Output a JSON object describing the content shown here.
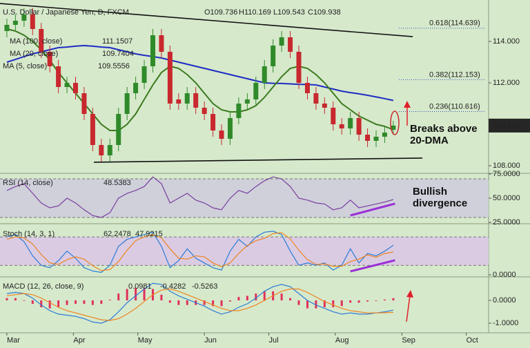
{
  "chart_data": [
    {
      "type": "candlestick",
      "title": "U.S. Dollar / Japanese Yen, D, FXCM",
      "ohlc_labels": [
        "O109.736",
        "H110.169",
        "L109.543",
        "C109.938"
      ],
      "categories": [
        null,
        null,
        null,
        null,
        null,
        null,
        null,
        null,
        null,
        null,
        null,
        null,
        null,
        null,
        null,
        null,
        null,
        null,
        null,
        null,
        null,
        null,
        null,
        null,
        null,
        null,
        null,
        null,
        null,
        null,
        null,
        null,
        null,
        null,
        null,
        null,
        null,
        null,
        null,
        null,
        null,
        null,
        null,
        null,
        null,
        null
      ],
      "candles": {
        "open": [
          114.5,
          114.8,
          115.0,
          115.3,
          114.6,
          113.5,
          112.8,
          111.8,
          112.0,
          111.5,
          110.5,
          109.0,
          108.5,
          109.0,
          110.5,
          111.5,
          112.0,
          112.8,
          114.3,
          113.5,
          111.2,
          111.0,
          111.5,
          110.8,
          110.5,
          109.7,
          109.3,
          110.3,
          111.0,
          111.2,
          112.0,
          112.8,
          113.8,
          114.2,
          113.5,
          112.0,
          111.5,
          111.0,
          110.8,
          110.0,
          109.8,
          110.3,
          109.5,
          109.2,
          109.4,
          109.736
        ],
        "high": [
          115.1,
          115.3,
          115.6,
          115.6,
          114.9,
          113.8,
          113.1,
          112.3,
          112.3,
          111.8,
          110.8,
          109.3,
          109.3,
          110.8,
          111.8,
          112.3,
          113.1,
          114.6,
          114.6,
          113.8,
          111.5,
          111.8,
          111.8,
          111.1,
          110.8,
          110.0,
          110.6,
          111.3,
          111.5,
          112.3,
          113.1,
          114.1,
          114.5,
          114.5,
          113.8,
          112.3,
          111.8,
          111.3,
          111.1,
          110.3,
          110.6,
          110.6,
          109.8,
          109.7,
          109.9,
          110.169
        ],
        "low": [
          114.2,
          114.5,
          114.7,
          114.3,
          113.2,
          112.5,
          111.5,
          111.5,
          111.2,
          110.2,
          108.7,
          108.2,
          108.2,
          108.7,
          110.2,
          111.2,
          111.7,
          112.5,
          113.2,
          110.7,
          110.7,
          110.7,
          110.5,
          110.2,
          109.4,
          109.0,
          109.0,
          110.0,
          110.7,
          110.9,
          111.7,
          112.5,
          113.5,
          113.2,
          111.7,
          111.2,
          110.7,
          110.5,
          109.7,
          109.5,
          109.5,
          109.2,
          108.9,
          108.9,
          109.1,
          109.543
        ],
        "close": [
          114.8,
          115.0,
          115.3,
          114.6,
          113.5,
          112.8,
          111.8,
          112.0,
          111.5,
          110.5,
          109.0,
          108.5,
          109.0,
          110.5,
          111.5,
          112.0,
          112.8,
          114.3,
          113.5,
          111.0,
          111.0,
          111.5,
          110.8,
          110.5,
          109.7,
          109.3,
          110.3,
          111.0,
          111.2,
          112.0,
          112.8,
          113.8,
          114.2,
          113.5,
          112.0,
          111.5,
          111.0,
          110.8,
          110.0,
          109.8,
          110.3,
          109.5,
          109.2,
          109.4,
          109.6,
          109.938
        ],
        "up_color": "#2f8a2a",
        "down_color": "#c8282e"
      },
      "series": [
        {
          "name": "MA (100, close)",
          "color": "#1d2bc4",
          "values": [
            113.0,
            113.13,
            113.27,
            113.4,
            113.5,
            113.6,
            113.7,
            113.73,
            113.77,
            113.8,
            113.77,
            113.73,
            113.7,
            113.6,
            113.5,
            113.4,
            113.33,
            113.27,
            113.2,
            113.1,
            113.0,
            112.9,
            112.8,
            112.7,
            112.6,
            112.5,
            112.4,
            112.3,
            112.2,
            112.1,
            112.0,
            111.98,
            111.97,
            111.95,
            111.93,
            111.92,
            111.9,
            111.8,
            111.7,
            111.6,
            111.53,
            111.47,
            111.4,
            111.32,
            111.24,
            111.1507
          ]
        },
        {
          "name": "MA (20, close)",
          "color": "#3b7a1e",
          "values": [
            114.6,
            114.5,
            114.3,
            114.0,
            113.6,
            113.1,
            112.5,
            112.0,
            111.5,
            111.0,
            110.5,
            110.0,
            109.7,
            109.7,
            110.0,
            110.5,
            111.2,
            111.9,
            112.5,
            112.8,
            112.7,
            112.4,
            112.0,
            111.5,
            111.0,
            110.7,
            110.6,
            110.6,
            110.7,
            110.9,
            111.3,
            111.8,
            112.3,
            112.7,
            112.8,
            112.7,
            112.4,
            112.0,
            111.5,
            111.0,
            110.7,
            110.4,
            110.2,
            110.0,
            109.9,
            109.7404
          ]
        }
      ],
      "legend_extra": [
        {
          "name": "MA (5, close)",
          "value": 109.5556
        }
      ],
      "trendlines": [
        {
          "x": [
            -0.8,
            47.27
          ],
          "y": [
            115.83,
            114.23
          ]
        },
        {
          "x": [
            10.13,
            48.39
          ],
          "y": [
            108.17,
            108.37
          ]
        }
      ],
      "fib_levels": [
        {
          "value": 114.639,
          "label": "0.618(114.639)"
        },
        {
          "value": 112.153,
          "label": "0.382(112.153)"
        },
        {
          "value": 110.616,
          "label": "0.236(110.616)"
        }
      ],
      "annotation": [
        "Breaks above",
        "20-DMA"
      ],
      "xlim": [
        -0.8,
        56.1
      ],
      "xticks": [
        {
          "value": 0,
          "label": "Mar"
        },
        {
          "value": 7.75,
          "label": "Apr"
        },
        {
          "value": 15.25,
          "label": "May"
        },
        {
          "value": 23,
          "label": "Jun"
        },
        {
          "value": 30.5,
          "label": "Jul"
        },
        {
          "value": 38.25,
          "label": "Aug"
        },
        {
          "value": 46,
          "label": "Sep"
        },
        {
          "value": 53.5,
          "label": "Oct"
        }
      ],
      "ylim": [
        107.6,
        116.0
      ],
      "yticks": [
        {
          "value": 108,
          "label": "108.000"
        },
        {
          "value": 112,
          "label": "112.000"
        },
        {
          "value": 114,
          "label": "114.000"
        }
      ]
    },
    {
      "type": "line",
      "title": "RSI (14, close)",
      "series": [
        {
          "color": "#7a3da0",
          "values": [
            58,
            62,
            65,
            55,
            45,
            40,
            42,
            50,
            45,
            38,
            32,
            30,
            35,
            50,
            55,
            58,
            62,
            72,
            65,
            45,
            50,
            55,
            48,
            45,
            40,
            38,
            50,
            58,
            55,
            62,
            68,
            72,
            70,
            62,
            50,
            48,
            45,
            44,
            38,
            40,
            48,
            40,
            42,
            44,
            46,
            48.5383
          ]
        }
      ],
      "bands": [
        70,
        30
      ],
      "band_color": "#cfd0da",
      "annotation": [
        "Bullish",
        "divergence"
      ],
      "divergence_line": {
        "x": [
          40,
          45.2
        ],
        "y": [
          32.1,
          44.3
        ]
      },
      "ylim": [
        25,
        75
      ],
      "yticks": [
        {
          "value": 75,
          "label": "75.0000"
        },
        {
          "value": 50,
          "label": "50.0000"
        },
        {
          "value": 25,
          "label": "25.0000"
        }
      ]
    },
    {
      "type": "line",
      "title": "Stoch (14, 3, 1)",
      "series": [
        {
          "color": "#2b7bd6",
          "values": [
            80,
            85,
            70,
            40,
            20,
            15,
            30,
            50,
            35,
            15,
            8,
            5,
            20,
            60,
            75,
            80,
            85,
            90,
            60,
            15,
            30,
            55,
            35,
            25,
            15,
            10,
            50,
            75,
            60,
            80,
            90,
            92,
            85,
            50,
            20,
            25,
            20,
            25,
            10,
            20,
            55,
            25,
            45,
            40,
            50,
            62.2478
          ]
        },
        {
          "color": "#ef8420",
          "values": [
            75,
            80,
            78,
            65,
            43,
            25,
            22,
            32,
            38,
            33,
            19,
            9,
            11,
            28,
            52,
            72,
            80,
            85,
            78,
            55,
            35,
            33,
            40,
            38,
            25,
            17,
            25,
            45,
            62,
            72,
            77,
            87,
            89,
            76,
            52,
            32,
            22,
            23,
            18,
            18,
            28,
            33,
            42,
            37,
            45,
            47.9215
          ]
        }
      ],
      "bands": [
        80,
        20
      ],
      "band_color": "#dacbe3",
      "divergence_line": {
        "x": [
          40,
          45.2
        ],
        "y": [
          7.2,
          30.6
        ]
      },
      "ylim": [
        -3,
        105
      ],
      "yticks": [
        {
          "value": 0,
          "label": "0.0000"
        }
      ]
    },
    {
      "type": "line",
      "title": "MACD (12, 26, close, 9)",
      "series": [
        {
          "type": "bar",
          "color": "#e0305a",
          "values": [
            0.1,
            0.1,
            0,
            -0.15,
            -0.3,
            -0.35,
            -0.3,
            -0.2,
            -0.15,
            -0.15,
            -0.2,
            -0.15,
            0.03,
            0.3,
            0.5,
            0.55,
            0.55,
            0.5,
            0.25,
            -0.1,
            -0.2,
            -0.2,
            -0.2,
            -0.2,
            -0.25,
            -0.25,
            -0.05,
            0.15,
            0.2,
            0.3,
            0.4,
            0.4,
            0.3,
            0.1,
            -0.2,
            -0.35,
            -0.35,
            -0.3,
            -0.3,
            -0.25,
            -0.1,
            -0.1,
            -0.05,
            0,
            0.04,
            0.0981
          ]
        },
        {
          "color": "#2b7bd6",
          "values": [
            0.3,
            0.35,
            0.3,
            0.1,
            -0.2,
            -0.45,
            -0.6,
            -0.65,
            -0.7,
            -0.8,
            -0.95,
            -1.0,
            -0.85,
            -0.5,
            -0.1,
            0.2,
            0.5,
            0.75,
            0.7,
            0.4,
            0.2,
            0.05,
            -0.1,
            -0.25,
            -0.45,
            -0.6,
            -0.5,
            -0.3,
            -0.15,
            0.1,
            0.4,
            0.6,
            0.7,
            0.6,
            0.3,
            0.0,
            -0.2,
            -0.35,
            -0.5,
            -0.6,
            -0.55,
            -0.6,
            -0.6,
            -0.55,
            -0.5,
            -0.4282
          ]
        },
        {
          "color": "#ef8420",
          "values": [
            0.2,
            0.25,
            0.3,
            0.25,
            0.1,
            -0.1,
            -0.3,
            -0.45,
            -0.55,
            -0.65,
            -0.75,
            -0.85,
            -0.88,
            -0.8,
            -0.6,
            -0.35,
            -0.05,
            0.25,
            0.45,
            0.5,
            0.4,
            0.25,
            0.1,
            -0.05,
            -0.2,
            -0.35,
            -0.45,
            -0.45,
            -0.35,
            -0.2,
            0.0,
            0.2,
            0.4,
            0.5,
            0.5,
            0.35,
            0.15,
            -0.05,
            -0.2,
            -0.35,
            -0.45,
            -0.5,
            -0.55,
            -0.55,
            -0.54,
            -0.5263
          ]
        }
      ],
      "ylim": [
        -1.36,
        1.0
      ],
      "yticks": [
        {
          "value": 0,
          "label": "0.0000"
        },
        {
          "value": -1,
          "label": "-1.0000"
        }
      ]
    }
  ]
}
